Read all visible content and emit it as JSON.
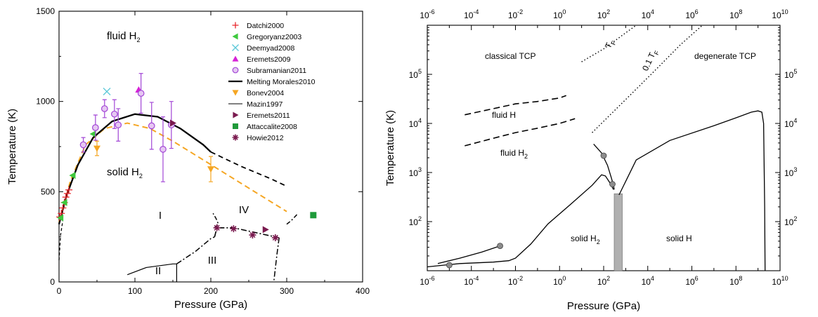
{
  "chart_data": [
    {
      "type": "scatter",
      "xlabel": "Pressure (GPa)",
      "ylabel": "Temperature (K)",
      "xlim": [
        0,
        400
      ],
      "ylim": [
        0,
        1500
      ],
      "xticks": [
        "0",
        "100",
        "200",
        "300",
        "400"
      ],
      "yticks": [
        "0",
        "500",
        "1000",
        "1500"
      ],
      "annotations": [
        {
          "key": "fluid",
          "text": "fluid H",
          "sub": "2"
        },
        {
          "key": "solid",
          "text": "solid H",
          "sub": "2"
        },
        {
          "key": "I",
          "text": "I"
        },
        {
          "key": "II",
          "text": "II"
        },
        {
          "key": "III",
          "text": "III"
        },
        {
          "key": "IV",
          "text": "IV"
        }
      ],
      "legend_position": "top-right",
      "series": [
        {
          "name": "Datchi2000",
          "marker": "plus",
          "color": "#e8262b",
          "points": [
            [
              1,
              360
            ],
            [
              3,
              380
            ],
            [
              5,
              410
            ],
            [
              7,
              440
            ],
            [
              9,
              470
            ],
            [
              11,
              490
            ],
            [
              13,
              510
            ]
          ]
        },
        {
          "name": "Gregoryanz2003",
          "marker": "triangle-left",
          "color": "#3ec93e",
          "points": [
            [
              2,
              355
            ],
            [
              7,
              440
            ],
            [
              18,
              590
            ],
            [
              45,
              820
            ]
          ]
        },
        {
          "name": "Deemyad2008",
          "marker": "x",
          "color": "#5bc8d8",
          "points": [
            [
              63,
              1055
            ]
          ]
        },
        {
          "name": "Eremets2009",
          "marker": "triangle-up",
          "color": "#d622d6",
          "points": [
            [
              105,
              1065
            ]
          ]
        },
        {
          "name": "Subramanian2011",
          "marker": "circle-open",
          "color": "#a246d6",
          "points": [
            [
              32,
              760,
              40
            ],
            [
              48,
              855,
              70
            ],
            [
              60,
              960,
              50
            ],
            [
              73,
              930,
              80
            ],
            [
              78,
              870,
              90
            ],
            [
              108,
              1045,
              110
            ],
            [
              122,
              865,
              130
            ],
            [
              137,
              735,
              180
            ],
            [
              148,
              870,
              130
            ]
          ]
        },
        {
          "name": "Melting Morales2010",
          "marker": "line-thick",
          "color": "#000000"
        },
        {
          "name": "Bonev2004",
          "marker": "triangle-down",
          "color": "#f5a623",
          "points": [
            [
              50,
              740,
              40
            ],
            [
              200,
              625,
              70
            ]
          ]
        },
        {
          "name": "Mazin1997",
          "marker": "line-thin",
          "color": "#000000"
        },
        {
          "name": "Eremets2011",
          "marker": "triangle-right",
          "color": "#7a1a4f",
          "points": [
            [
              150,
              880
            ],
            [
              272,
              290
            ]
          ]
        },
        {
          "name": "Attaccalite2008",
          "marker": "square",
          "color": "#1f9a3a",
          "points": [
            [
              335,
              370
            ]
          ]
        },
        {
          "name": "Howie2012",
          "marker": "asterisk",
          "color": "#7a1a4f",
          "points": [
            [
              208,
              300
            ],
            [
              230,
              295
            ],
            [
              255,
              260
            ],
            [
              285,
              245
            ]
          ]
        }
      ],
      "curves": {
        "melting_morales": [
          [
            0,
            320
          ],
          [
            10,
            480
          ],
          [
            25,
            650
          ],
          [
            45,
            800
          ],
          [
            70,
            890
          ],
          [
            100,
            930
          ],
          [
            130,
            915
          ],
          [
            160,
            850
          ],
          [
            190,
            760
          ],
          [
            200,
            720
          ]
        ],
        "melting_extrap": [
          [
            200,
            720
          ],
          [
            240,
            640
          ],
          [
            280,
            570
          ],
          [
            300,
            530
          ]
        ],
        "bonev_fit": [
          [
            0,
            330
          ],
          [
            15,
            560
          ],
          [
            35,
            760
          ],
          [
            60,
            850
          ],
          [
            90,
            880
          ],
          [
            120,
            850
          ],
          [
            150,
            780
          ],
          [
            200,
            650
          ],
          [
            250,
            520
          ],
          [
            300,
            390
          ]
        ],
        "low_p_dashed": [
          [
            0,
            120
          ],
          [
            2,
            260
          ],
          [
            5,
            340
          ]
        ],
        "ii_boundary_solid": [
          [
            90,
            40
          ],
          [
            115,
            80
          ],
          [
            150,
            100
          ],
          [
            155,
            100
          ]
        ],
        "ii_iii": [
          [
            155,
            100
          ],
          [
            180,
            170
          ],
          [
            200,
            240
          ],
          [
            205,
            250
          ]
        ],
        "i_iii": [
          [
            205,
            250
          ],
          [
            208,
            300
          ],
          [
            230,
            300
          ],
          [
            290,
            245
          ]
        ],
        "i_iv": [
          [
            205,
            300
          ],
          [
            210,
            320
          ],
          [
            207,
            350
          ],
          [
            203,
            380
          ]
        ],
        "iv_boundary": [
          [
            300,
            320
          ],
          [
            306,
            340
          ],
          [
            315,
            380
          ]
        ],
        "iii_lower": [
          [
            290,
            245
          ],
          [
            287,
            150
          ],
          [
            283,
            0
          ]
        ]
      }
    },
    {
      "type": "line",
      "xlabel": "Pressure (GPa)",
      "ylabel": "Temperature (K)",
      "xscale": "log",
      "yscale": "log",
      "xlim": [
        1e-06,
        10000000000.0
      ],
      "ylim": [
        10,
        1000000.0
      ],
      "xticks_bottom": [
        {
          "base": "10",
          "exp": "-6"
        },
        {
          "base": "10",
          "exp": "-4"
        },
        {
          "base": "10",
          "exp": "-2"
        },
        {
          "base": "10",
          "exp": "0"
        },
        {
          "base": "10",
          "exp": "2"
        },
        {
          "base": "10",
          "exp": "4"
        },
        {
          "base": "10",
          "exp": "6"
        },
        {
          "base": "10",
          "exp": "8"
        },
        {
          "base": "10",
          "exp": "10"
        }
      ],
      "xticks_top": [
        {
          "base": "10",
          "exp": "-6"
        },
        {
          "base": "10",
          "exp": "-4"
        },
        {
          "base": "10",
          "exp": "-2"
        },
        {
          "base": "10",
          "exp": "0"
        },
        {
          "base": "10",
          "exp": "2"
        },
        {
          "base": "10",
          "exp": "4"
        },
        {
          "base": "10",
          "exp": "6"
        },
        {
          "base": "10",
          "exp": "8"
        },
        {
          "base": "10",
          "exp": "10"
        }
      ],
      "yticks_left": [
        {
          "base": "10",
          "exp": "2"
        },
        {
          "base": "10",
          "exp": "3"
        },
        {
          "base": "10",
          "exp": "4"
        },
        {
          "base": "10",
          "exp": "5"
        }
      ],
      "yticks_right": [
        {
          "base": "10",
          "exp": "2"
        },
        {
          "base": "10",
          "exp": "3"
        },
        {
          "base": "10",
          "exp": "4"
        },
        {
          "base": "10",
          "exp": "5"
        }
      ],
      "annotations": [
        {
          "key": "classical",
          "text": "classical TCP"
        },
        {
          "key": "degenerate",
          "text": "degenerate TCP"
        },
        {
          "key": "fluidH",
          "text": "fluid H"
        },
        {
          "key": "fluidH2",
          "text": "fluid H",
          "sub": "2"
        },
        {
          "key": "solidH2",
          "text": "solid H",
          "sub": "2"
        },
        {
          "key": "solidH",
          "text": "solid H"
        },
        {
          "key": "TF",
          "text": "T",
          "sub": "F"
        },
        {
          "key": "TF01",
          "text": "0.1 T",
          "sub": "F"
        }
      ],
      "curves": {
        "melting": [
          [
            1e-06,
            12
          ],
          [
            3e-05,
            14
          ],
          [
            0.001,
            15
          ],
          [
            0.005,
            16
          ],
          [
            0.01,
            18
          ],
          [
            0.05,
            35
          ],
          [
            0.3,
            90
          ],
          [
            3,
            220
          ],
          [
            30,
            550
          ],
          [
            80,
            900
          ],
          [
            120,
            850
          ],
          [
            200,
            600
          ],
          [
            280,
            450
          ]
        ],
        "sublimation": [
          [
            3e-06,
            14
          ],
          [
            3e-05,
            18
          ],
          [
            0.0003,
            24
          ],
          [
            0.002,
            32
          ]
        ],
        "solid_h": [
          [
            500,
            350
          ],
          [
            3000,
            1800
          ],
          [
            100000.0,
            4500
          ],
          [
            10000000.0,
            9000
          ],
          [
            100000000.0,
            13000
          ],
          [
            500000000.0,
            17000
          ],
          [
            1000000000.0,
            18000
          ],
          [
            1500000000.0,
            17000
          ],
          [
            1800000000.0,
            10000
          ],
          [
            2000000000.0,
            200
          ],
          [
            2100000000.0,
            10
          ]
        ],
        "dissociation": [
          [
            35,
            3800
          ],
          [
            80,
            2500
          ],
          [
            150,
            1400
          ],
          [
            220,
            800
          ],
          [
            280,
            550
          ],
          [
            300,
            450
          ]
        ],
        "upper_dashed": [
          [
            5e-05,
            15000
          ],
          [
            0.001,
            20000
          ],
          [
            0.01,
            25000
          ],
          [
            0.1,
            28000
          ],
          [
            1,
            33000
          ],
          [
            2,
            37000
          ]
        ],
        "lower_dashed": [
          [
            5e-05,
            3500
          ],
          [
            0.001,
            5000
          ],
          [
            0.01,
            6500
          ],
          [
            0.1,
            8000
          ],
          [
            1,
            10000
          ],
          [
            5,
            12500
          ]
        ],
        "tf_line": [
          [
            10,
            180000
          ],
          [
            100,
            330000
          ],
          [
            1000,
            700000
          ],
          [
            3000,
            1000000
          ]
        ],
        "tf01_line": [
          [
            30,
            6500
          ],
          [
            300,
            18000
          ],
          [
            3000,
            50000
          ],
          [
            30000.0,
            140000
          ],
          [
            300000.0,
            400000
          ],
          [
            3000000.0,
            1000000
          ]
        ],
        "gray_markers": [
          [
            1e-05,
            13
          ],
          [
            0.002,
            32
          ],
          [
            100,
            2200
          ],
          [
            250,
            580
          ]
        ],
        "shaded_band": {
          "x": [
            300,
            700
          ],
          "y": [
            10,
            370
          ],
          "color": "#b0b0b0"
        }
      }
    }
  ]
}
